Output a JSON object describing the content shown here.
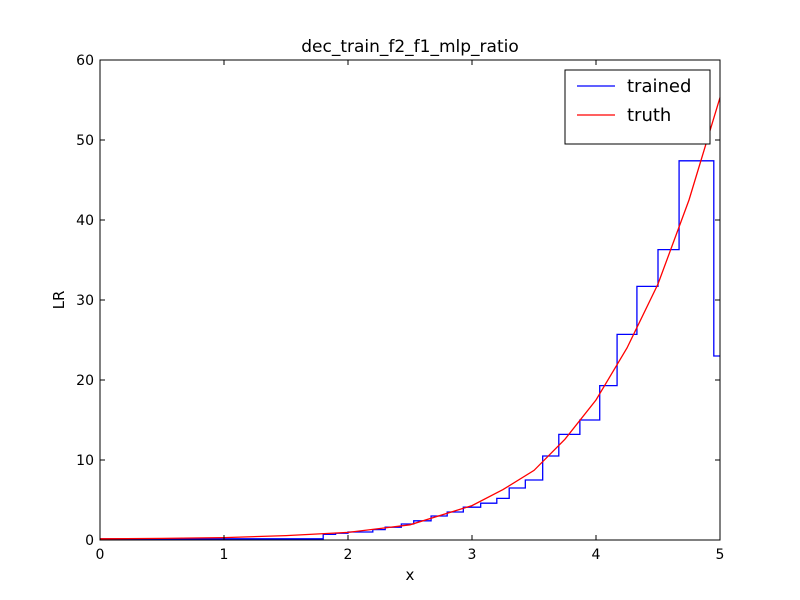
{
  "chart_data": {
    "type": "line",
    "title": "dec_train_f2_f1_mlp_ratio",
    "xlabel": "x",
    "ylabel": "LR",
    "xlim": [
      0,
      5
    ],
    "ylim": [
      0,
      60
    ],
    "xticks": [
      0,
      1,
      2,
      3,
      4,
      5
    ],
    "xtick_labels": [
      "0",
      "1",
      "2",
      "3",
      "4",
      "5"
    ],
    "yticks": [
      0,
      10,
      20,
      30,
      40,
      50,
      60
    ],
    "ytick_labels": [
      "0",
      "10",
      "20",
      "30",
      "40",
      "50",
      "60"
    ],
    "grid": false,
    "legend_position": "top-right",
    "series": [
      {
        "name": "trained",
        "color": "#0000ff",
        "style": "step",
        "x": [
          0,
          1.8,
          1.9,
          2.0,
          2.2,
          2.3,
          2.43,
          2.53,
          2.67,
          2.8,
          2.93,
          3.07,
          3.2,
          3.3,
          3.43,
          3.57,
          3.7,
          3.87,
          4.03,
          4.17,
          4.33,
          4.5,
          4.67,
          4.8,
          4.95,
          5.0
        ],
        "y": [
          0.15,
          0.7,
          0.85,
          1.0,
          1.3,
          1.6,
          2.0,
          2.4,
          3.0,
          3.5,
          4.1,
          4.6,
          5.2,
          6.5,
          7.5,
          10.5,
          13.2,
          15.0,
          19.3,
          25.7,
          31.7,
          36.3,
          47.4,
          47.4,
          23.0,
          23.0
        ]
      },
      {
        "name": "truth",
        "color": "#ff0000",
        "style": "line",
        "x": [
          0,
          0.5,
          1.0,
          1.5,
          2.0,
          2.5,
          3.0,
          3.25,
          3.5,
          3.75,
          4.0,
          4.25,
          4.5,
          4.75,
          5.0
        ],
        "y": [
          0.15,
          0.2,
          0.3,
          0.55,
          0.95,
          1.9,
          4.3,
          6.3,
          8.7,
          12.6,
          17.5,
          24.0,
          32.0,
          42.5,
          55.3
        ]
      }
    ]
  }
}
